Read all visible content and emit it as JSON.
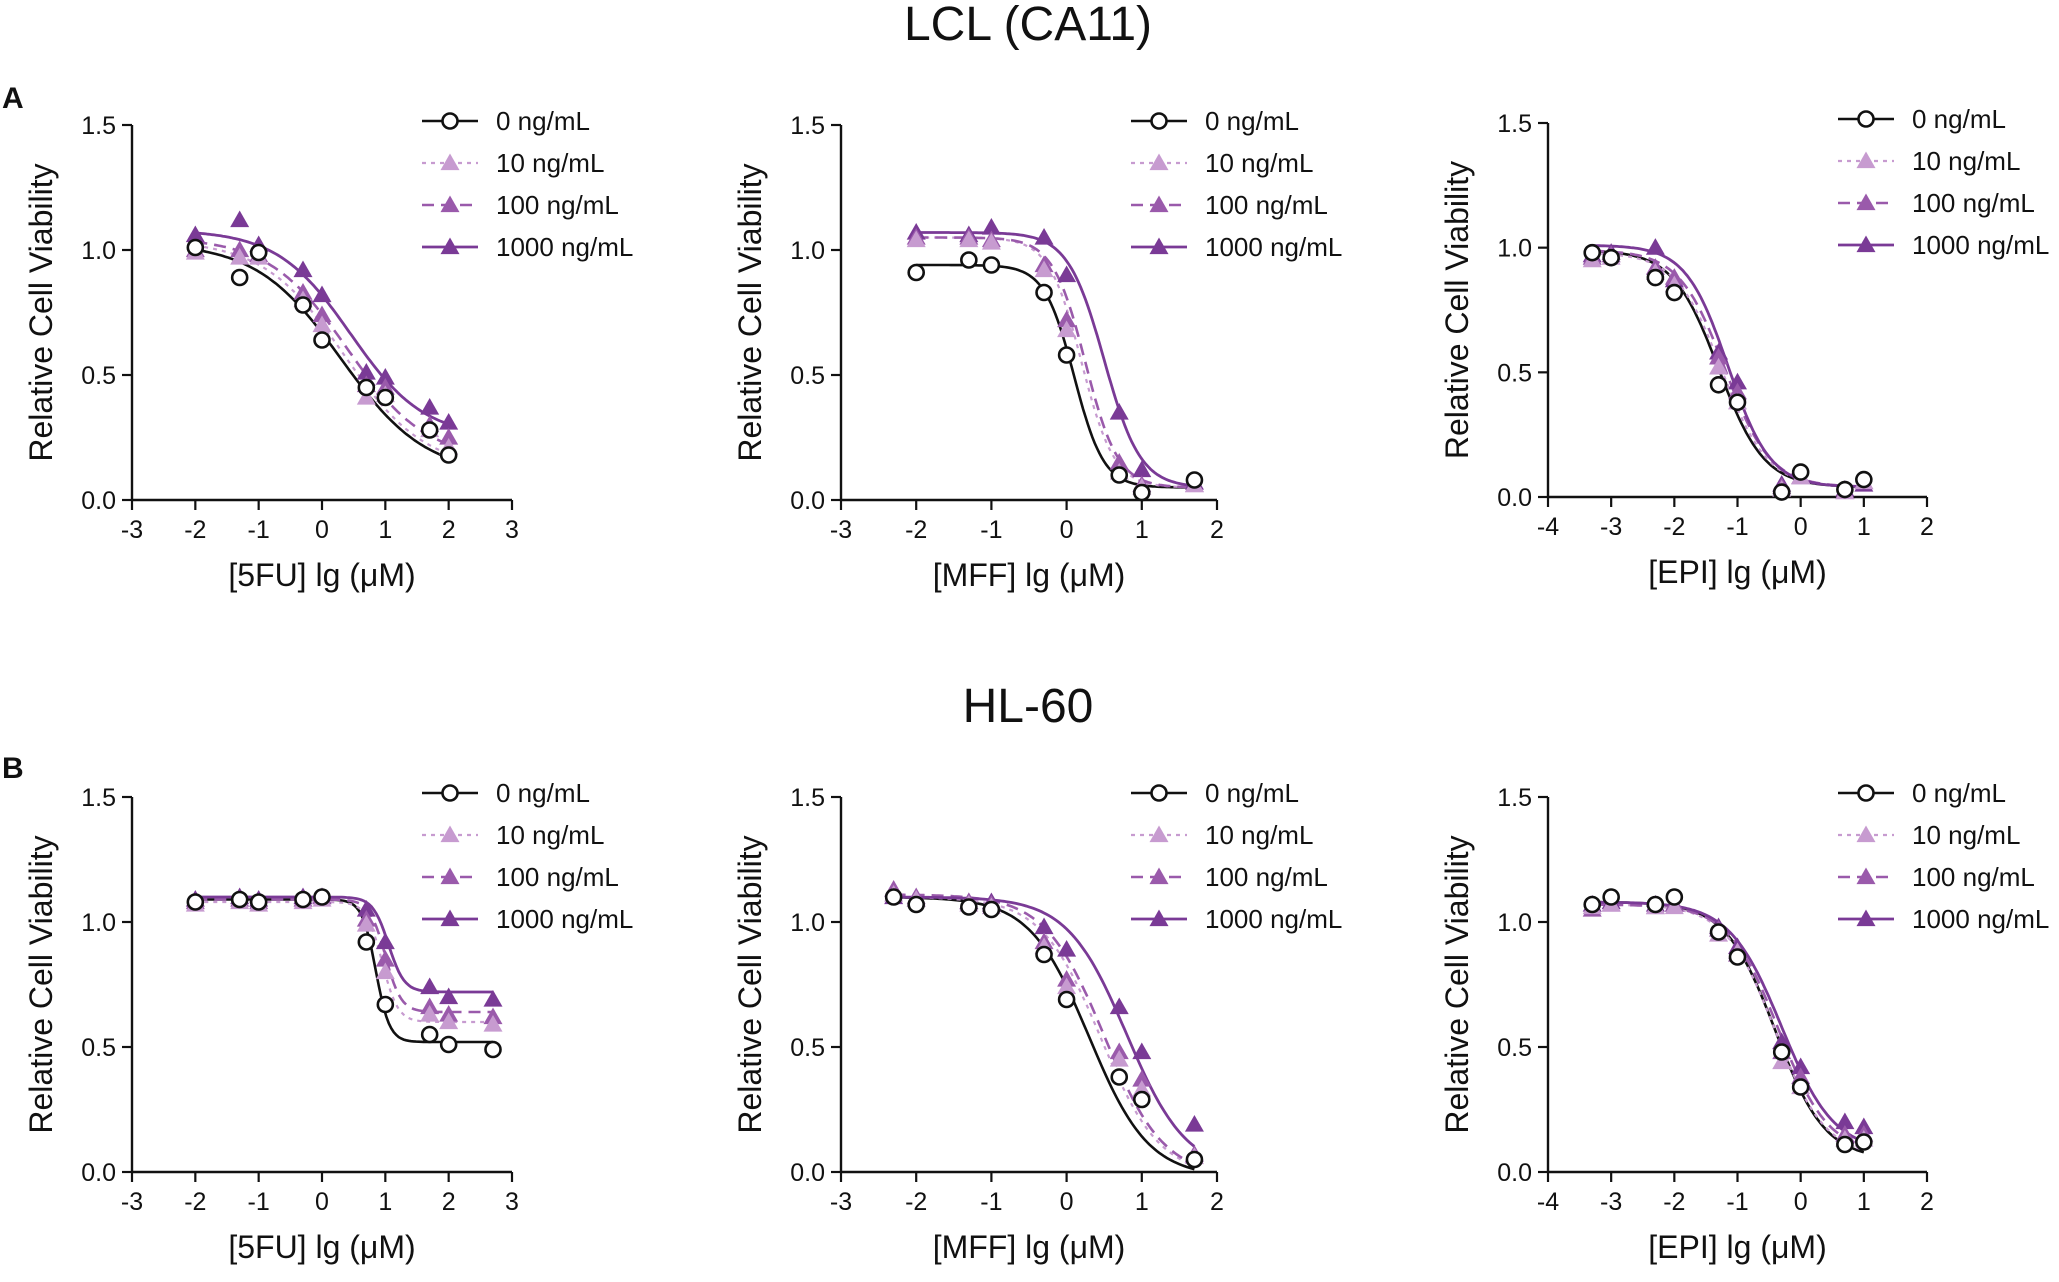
{
  "titles": {
    "rowA": "LCL (CA11)",
    "rowB": "HL-60"
  },
  "panel_labels": {
    "A": "A",
    "B": "B"
  },
  "legend_labels": [
    "0 ng/mL",
    "10 ng/mL",
    "100 ng/mL",
    "1000 ng/mL"
  ],
  "colors": {
    "c0": "#111111",
    "c10": "#c79bd0",
    "c100": "#9a5aab",
    "c1000": "#7a3a96"
  },
  "chart_data": [
    {
      "id": "A-5FU",
      "type": "scatter",
      "xlabel": "[5FU] lg (μM)",
      "ylabel": "Relative Cell Viability",
      "xlim": [
        -3,
        3
      ],
      "ylim": [
        0,
        1.5
      ],
      "xticks": [
        -3,
        -2,
        -1,
        0,
        1,
        2,
        3
      ],
      "yticks": [
        0.0,
        0.5,
        1.0,
        1.5
      ],
      "series": [
        {
          "name": "0 ng/mL",
          "x": [
            -2,
            -1.3,
            -1,
            -0.3,
            0,
            0.7,
            1,
            1.7,
            2
          ],
          "y": [
            1.01,
            0.89,
            0.99,
            0.78,
            0.64,
            0.45,
            0.41,
            0.28,
            0.18
          ],
          "fit": {
            "top": 1.03,
            "bottom": 0.1,
            "ec50": 0.3,
            "hill": 0.65
          }
        },
        {
          "name": "10 ng/mL",
          "x": [
            -2,
            -1.3,
            -1,
            -0.3,
            0,
            0.7,
            1,
            1.7,
            2
          ],
          "y": [
            0.99,
            0.97,
            0.97,
            0.8,
            0.7,
            0.41,
            0.42,
            0.28,
            0.21
          ],
          "fit": {
            "top": 1.04,
            "bottom": 0.12,
            "ec50": 0.35,
            "hill": 0.68
          }
        },
        {
          "name": "100 ng/mL",
          "x": [
            -2,
            -1.3,
            -1,
            -0.3,
            0,
            0.7,
            1,
            1.7,
            2
          ],
          "y": [
            1.0,
            1.0,
            0.98,
            0.83,
            0.74,
            0.46,
            0.45,
            0.3,
            0.25
          ],
          "fit": {
            "top": 1.05,
            "bottom": 0.16,
            "ec50": 0.4,
            "hill": 0.7
          }
        },
        {
          "name": "1000 ng/mL",
          "x": [
            -2,
            -1.3,
            -1,
            -0.3,
            0,
            0.7,
            1,
            1.7,
            2
          ],
          "y": [
            1.06,
            1.12,
            1.02,
            0.92,
            0.82,
            0.51,
            0.49,
            0.37,
            0.31
          ],
          "fit": {
            "top": 1.08,
            "bottom": 0.25,
            "ec50": 0.45,
            "hill": 0.75
          }
        }
      ]
    },
    {
      "id": "A-MFF",
      "type": "scatter",
      "xlabel": "[MFF] lg (μM)",
      "ylabel": "Relative Cell Viability",
      "xlim": [
        -3,
        2
      ],
      "ylim": [
        0,
        1.5
      ],
      "xticks": [
        -3,
        -2,
        -1,
        0,
        1,
        2
      ],
      "yticks": [
        0.0,
        0.5,
        1.0,
        1.5
      ],
      "series": [
        {
          "name": "0 ng/mL",
          "x": [
            -2,
            -1.3,
            -1,
            -0.3,
            0,
            0.7,
            1,
            1.7
          ],
          "y": [
            0.91,
            0.96,
            0.94,
            0.83,
            0.58,
            0.1,
            0.03,
            0.08
          ],
          "fit": {
            "top": 0.94,
            "bottom": 0.05,
            "ec50": 0.1,
            "hill": 2.2
          }
        },
        {
          "name": "10 ng/mL",
          "x": [
            -2,
            -1.3,
            -1,
            -0.3,
            0,
            0.7,
            1,
            1.7
          ],
          "y": [
            1.04,
            1.04,
            1.03,
            0.92,
            0.68,
            0.11,
            0.05,
            0.06
          ],
          "fit": {
            "top": 1.05,
            "bottom": 0.05,
            "ec50": 0.2,
            "hill": 2.0
          }
        },
        {
          "name": "100 ng/mL",
          "x": [
            -2,
            -1.3,
            -1,
            -0.3,
            0,
            0.7,
            1,
            1.7
          ],
          "y": [
            1.05,
            1.05,
            1.04,
            0.94,
            0.72,
            0.15,
            0.06,
            0.06
          ],
          "fit": {
            "top": 1.05,
            "bottom": 0.05,
            "ec50": 0.25,
            "hill": 2.0
          }
        },
        {
          "name": "1000 ng/mL",
          "x": [
            -2,
            -1.3,
            -1,
            -0.3,
            0,
            0.7,
            1,
            1.7
          ],
          "y": [
            1.07,
            1.06,
            1.09,
            1.05,
            0.9,
            0.35,
            0.12,
            0.07
          ],
          "fit": {
            "top": 1.07,
            "bottom": 0.05,
            "ec50": 0.5,
            "hill": 1.8
          }
        }
      ]
    },
    {
      "id": "A-EPI",
      "type": "scatter",
      "xlabel": "[EPI] lg (μM)",
      "ylabel": "Relative Cell Viability",
      "xlim": [
        -4,
        2
      ],
      "ylim": [
        0,
        1.5
      ],
      "xticks": [
        -4,
        -3,
        -2,
        -1,
        0,
        1,
        2
      ],
      "yticks": [
        0.0,
        0.5,
        1.0,
        1.5
      ],
      "series": [
        {
          "name": "0 ng/mL",
          "x": [
            -3.3,
            -3,
            -2.3,
            -2,
            -1.3,
            -1,
            -0.3,
            0,
            0.7,
            1
          ],
          "y": [
            0.98,
            0.96,
            0.88,
            0.82,
            0.45,
            0.38,
            0.02,
            0.1,
            0.03,
            0.07
          ],
          "fit": {
            "top": 0.99,
            "bottom": 0.04,
            "ec50": -1.3,
            "hill": 1.2
          }
        },
        {
          "name": "10 ng/mL",
          "x": [
            -3.3,
            -3,
            -2.3,
            -2,
            -1.3,
            -1,
            -0.3,
            0,
            0.7,
            1
          ],
          "y": [
            0.95,
            0.96,
            0.9,
            0.85,
            0.52,
            0.38,
            0.03,
            0.08,
            0.02,
            0.06
          ],
          "fit": {
            "top": 0.98,
            "bottom": 0.04,
            "ec50": -1.25,
            "hill": 1.2
          }
        },
        {
          "name": "100 ng/mL",
          "x": [
            -3.3,
            -3,
            -2.3,
            -2,
            -1.3,
            -1,
            -0.3,
            0,
            0.7,
            1
          ],
          "y": [
            0.96,
            0.97,
            0.92,
            0.88,
            0.56,
            0.42,
            0.04,
            0.08,
            0.02,
            0.06
          ],
          "fit": {
            "top": 0.99,
            "bottom": 0.04,
            "ec50": -1.2,
            "hill": 1.2
          }
        },
        {
          "name": "1000 ng/mL",
          "x": [
            -3.3,
            -3,
            -2.3,
            -2,
            -1.3,
            -1,
            -0.3,
            0,
            0.7,
            1
          ],
          "y": [
            0.97,
            0.98,
            1.0,
            0.87,
            0.58,
            0.46,
            0.05,
            0.08,
            0.03,
            0.05
          ],
          "fit": {
            "top": 1.01,
            "bottom": 0.04,
            "ec50": -1.15,
            "hill": 1.3
          }
        }
      ]
    },
    {
      "id": "B-5FU",
      "type": "scatter",
      "xlabel": "[5FU] lg (μM)",
      "ylabel": "Relative Cell Viability",
      "xlim": [
        -3,
        3
      ],
      "ylim": [
        0,
        1.5
      ],
      "xticks": [
        -3,
        -2,
        -1,
        0,
        1,
        2,
        3
      ],
      "yticks": [
        0.0,
        0.5,
        1.0,
        1.5
      ],
      "series": [
        {
          "name": "0 ng/mL",
          "x": [
            -2,
            -1.3,
            -1,
            -0.3,
            0,
            0.7,
            1,
            1.7,
            2,
            2.7
          ],
          "y": [
            1.08,
            1.09,
            1.08,
            1.09,
            1.1,
            0.92,
            0.67,
            0.55,
            0.51,
            0.49
          ],
          "fit": {
            "top": 1.09,
            "bottom": 0.52,
            "ec50": 0.85,
            "hill": 4.0
          }
        },
        {
          "name": "10 ng/mL",
          "x": [
            -2,
            -1.3,
            -1,
            -0.3,
            0,
            0.7,
            1,
            1.7,
            2,
            2.7
          ],
          "y": [
            1.07,
            1.08,
            1.07,
            1.08,
            1.09,
            0.99,
            0.8,
            0.63,
            0.6,
            0.59
          ],
          "fit": {
            "top": 1.08,
            "bottom": 0.6,
            "ec50": 0.95,
            "hill": 3.5
          }
        },
        {
          "name": "100 ng/mL",
          "x": [
            -2,
            -1.3,
            -1,
            -0.3,
            0,
            0.7,
            1,
            1.7,
            2,
            2.7
          ],
          "y": [
            1.08,
            1.09,
            1.08,
            1.09,
            1.1,
            1.01,
            0.85,
            0.66,
            0.63,
            0.62
          ],
          "fit": {
            "top": 1.09,
            "bottom": 0.64,
            "ec50": 1.0,
            "hill": 3.5
          }
        },
        {
          "name": "1000 ng/mL",
          "x": [
            -2,
            -1.3,
            -1,
            -0.3,
            0,
            0.7,
            1,
            1.7,
            2,
            2.7
          ],
          "y": [
            1.09,
            1.1,
            1.09,
            1.1,
            1.1,
            1.05,
            0.92,
            0.74,
            0.7,
            0.69
          ],
          "fit": {
            "top": 1.1,
            "bottom": 0.72,
            "ec50": 1.05,
            "hill": 3.5
          }
        }
      ]
    },
    {
      "id": "B-MFF",
      "type": "scatter",
      "xlabel": "[MFF] lg (μM)",
      "ylabel": "Relative Cell Viability",
      "xlim": [
        -3,
        2
      ],
      "ylim": [
        0,
        1.5
      ],
      "xticks": [
        -3,
        -2,
        -1,
        0,
        1,
        2
      ],
      "yticks": [
        0.0,
        0.5,
        1.0,
        1.5
      ],
      "series": [
        {
          "name": "0 ng/mL",
          "x": [
            -2.3,
            -2,
            -1.3,
            -1,
            -0.3,
            0,
            0.7,
            1,
            1.7
          ],
          "y": [
            1.1,
            1.07,
            1.06,
            1.05,
            0.87,
            0.69,
            0.38,
            0.29,
            0.05
          ],
          "fit": {
            "top": 1.1,
            "bottom": -0.02,
            "ec50": 0.3,
            "hill": 1.1
          }
        },
        {
          "name": "10 ng/mL",
          "x": [
            -2.3,
            -2,
            -1.3,
            -1,
            -0.3,
            0,
            0.7,
            1,
            1.7
          ],
          "y": [
            1.11,
            1.09,
            1.07,
            1.06,
            0.9,
            0.74,
            0.45,
            0.33,
            0.06
          ],
          "fit": {
            "top": 1.1,
            "bottom": -0.02,
            "ec50": 0.45,
            "hill": 1.1
          }
        },
        {
          "name": "100 ng/mL",
          "x": [
            -2.3,
            -2,
            -1.3,
            -1,
            -0.3,
            0,
            0.7,
            1,
            1.7
          ],
          "y": [
            1.13,
            1.1,
            1.08,
            1.07,
            0.92,
            0.77,
            0.48,
            0.37,
            0.07
          ],
          "fit": {
            "top": 1.11,
            "bottom": -0.02,
            "ec50": 0.5,
            "hill": 1.1
          }
        },
        {
          "name": "1000 ng/mL",
          "x": [
            -2.3,
            -2,
            -1.3,
            -1,
            -0.3,
            0,
            0.7,
            1,
            1.7
          ],
          "y": [
            1.1,
            1.09,
            1.08,
            1.08,
            0.98,
            0.89,
            0.66,
            0.48,
            0.19
          ],
          "fit": {
            "top": 1.1,
            "bottom": 0.0,
            "ec50": 0.8,
            "hill": 1.1
          }
        }
      ]
    },
    {
      "id": "B-EPI",
      "type": "scatter",
      "xlabel": "[EPI] lg (μM)",
      "ylabel": "Relative Cell Viability",
      "xlim": [
        -4,
        2
      ],
      "ylim": [
        0,
        1.5
      ],
      "xticks": [
        -4,
        -3,
        -2,
        -1,
        0,
        1,
        2
      ],
      "yticks": [
        0.0,
        0.5,
        1.0,
        1.5
      ],
      "series": [
        {
          "name": "0 ng/mL",
          "x": [
            -3.3,
            -3,
            -2.3,
            -2,
            -1.3,
            -1,
            -0.3,
            0,
            0.7,
            1
          ],
          "y": [
            1.07,
            1.1,
            1.07,
            1.1,
            0.96,
            0.86,
            0.48,
            0.34,
            0.11,
            0.12
          ],
          "fit": {
            "top": 1.08,
            "bottom": 0.05,
            "ec50": -0.4,
            "hill": 1.1
          }
        },
        {
          "name": "10 ng/mL",
          "x": [
            -3.3,
            -3,
            -2.3,
            -2,
            -1.3,
            -1,
            -0.3,
            0,
            0.7,
            1
          ],
          "y": [
            1.06,
            1.07,
            1.06,
            1.06,
            0.95,
            0.88,
            0.44,
            0.34,
            0.13,
            0.13
          ],
          "fit": {
            "top": 1.07,
            "bottom": 0.06,
            "ec50": -0.4,
            "hill": 1.1
          }
        },
        {
          "name": "100 ng/mL",
          "x": [
            -3.3,
            -3,
            -2.3,
            -2,
            -1.3,
            -1,
            -0.3,
            0,
            0.7,
            1
          ],
          "y": [
            1.05,
            1.07,
            1.06,
            1.07,
            0.97,
            0.87,
            0.48,
            0.38,
            0.15,
            0.15
          ],
          "fit": {
            "top": 1.07,
            "bottom": 0.07,
            "ec50": -0.35,
            "hill": 1.1
          }
        },
        {
          "name": "1000 ng/mL",
          "x": [
            -3.3,
            -3,
            -2.3,
            -2,
            -1.3,
            -1,
            -0.3,
            0,
            0.7,
            1
          ],
          "y": [
            1.07,
            1.08,
            1.07,
            1.07,
            0.98,
            0.9,
            0.52,
            0.42,
            0.2,
            0.18
          ],
          "fit": {
            "top": 1.08,
            "bottom": 0.08,
            "ec50": -0.3,
            "hill": 1.05
          }
        }
      ]
    }
  ]
}
